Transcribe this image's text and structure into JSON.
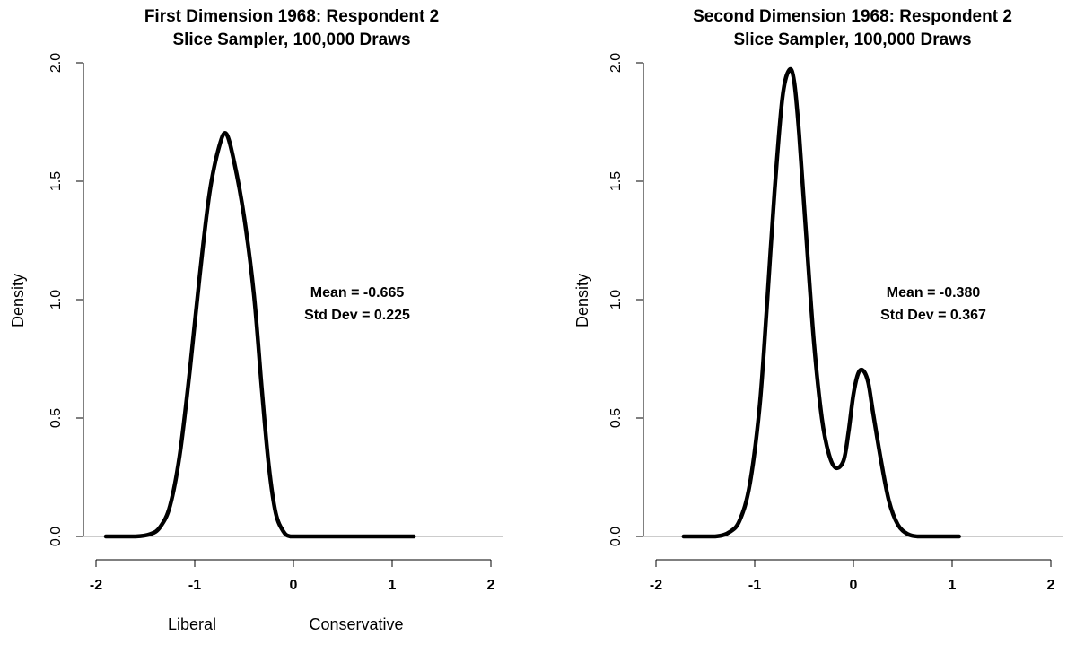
{
  "chart_data": [
    {
      "type": "line",
      "title": "First Dimension 1968: Respondent 2",
      "subtitle": "Slice Sampler, 100,000 Draws",
      "ylabel": "Density",
      "xlim": [
        -2,
        2
      ],
      "ylim": [
        0,
        2
      ],
      "xticks": [
        "-2",
        "-1",
        "0",
        "1",
        "2"
      ],
      "yticks": [
        "0.0",
        "0.5",
        "1.0",
        "1.5",
        "2.0"
      ],
      "annotation": [
        "Mean = -0.665",
        "Std Dev = 0.225"
      ],
      "axis_notes": [
        "Liberal",
        "Conservative"
      ],
      "series": [
        {
          "x": [
            -1.9,
            -1.6,
            -1.45,
            -1.35,
            -1.25,
            -1.15,
            -1.05,
            -0.95,
            -0.85,
            -0.75,
            -0.68,
            -0.6,
            -0.5,
            -0.4,
            -0.32,
            -0.25,
            -0.18,
            -0.1,
            -0.03,
            0.1,
            0.5,
            1.0,
            1.22
          ],
          "y": [
            0,
            0,
            0.01,
            0.04,
            0.13,
            0.35,
            0.7,
            1.1,
            1.45,
            1.65,
            1.7,
            1.58,
            1.35,
            1.02,
            0.62,
            0.3,
            0.1,
            0.02,
            0,
            0,
            0,
            0,
            0
          ]
        }
      ]
    },
    {
      "type": "line",
      "title": "Second Dimension 1968: Respondent 2",
      "subtitle": "Slice Sampler, 100,000 Draws",
      "ylabel": "Density",
      "xlim": [
        -2,
        2
      ],
      "ylim": [
        0,
        2
      ],
      "xticks": [
        "-2",
        "-1",
        "0",
        "1",
        "2"
      ],
      "yticks": [
        "0.0",
        "0.5",
        "1.0",
        "1.5",
        "2.0"
      ],
      "annotation": [
        "Mean = -0.380",
        "Std Dev = 0.367"
      ],
      "series": [
        {
          "x": [
            -1.72,
            -1.4,
            -1.25,
            -1.15,
            -1.05,
            -0.95,
            -0.88,
            -0.8,
            -0.72,
            -0.65,
            -0.6,
            -0.55,
            -0.48,
            -0.4,
            -0.32,
            -0.25,
            -0.18,
            -0.1,
            -0.05,
            0.0,
            0.05,
            0.1,
            0.15,
            0.2,
            0.28,
            0.36,
            0.45,
            0.55,
            0.65,
            0.75,
            0.9,
            1.07
          ],
          "y": [
            0,
            0,
            0.02,
            0.07,
            0.22,
            0.55,
            0.95,
            1.45,
            1.85,
            1.97,
            1.92,
            1.7,
            1.28,
            0.82,
            0.5,
            0.35,
            0.29,
            0.32,
            0.44,
            0.6,
            0.69,
            0.7,
            0.65,
            0.52,
            0.32,
            0.15,
            0.05,
            0.01,
            0,
            0,
            0,
            0
          ]
        }
      ]
    }
  ]
}
